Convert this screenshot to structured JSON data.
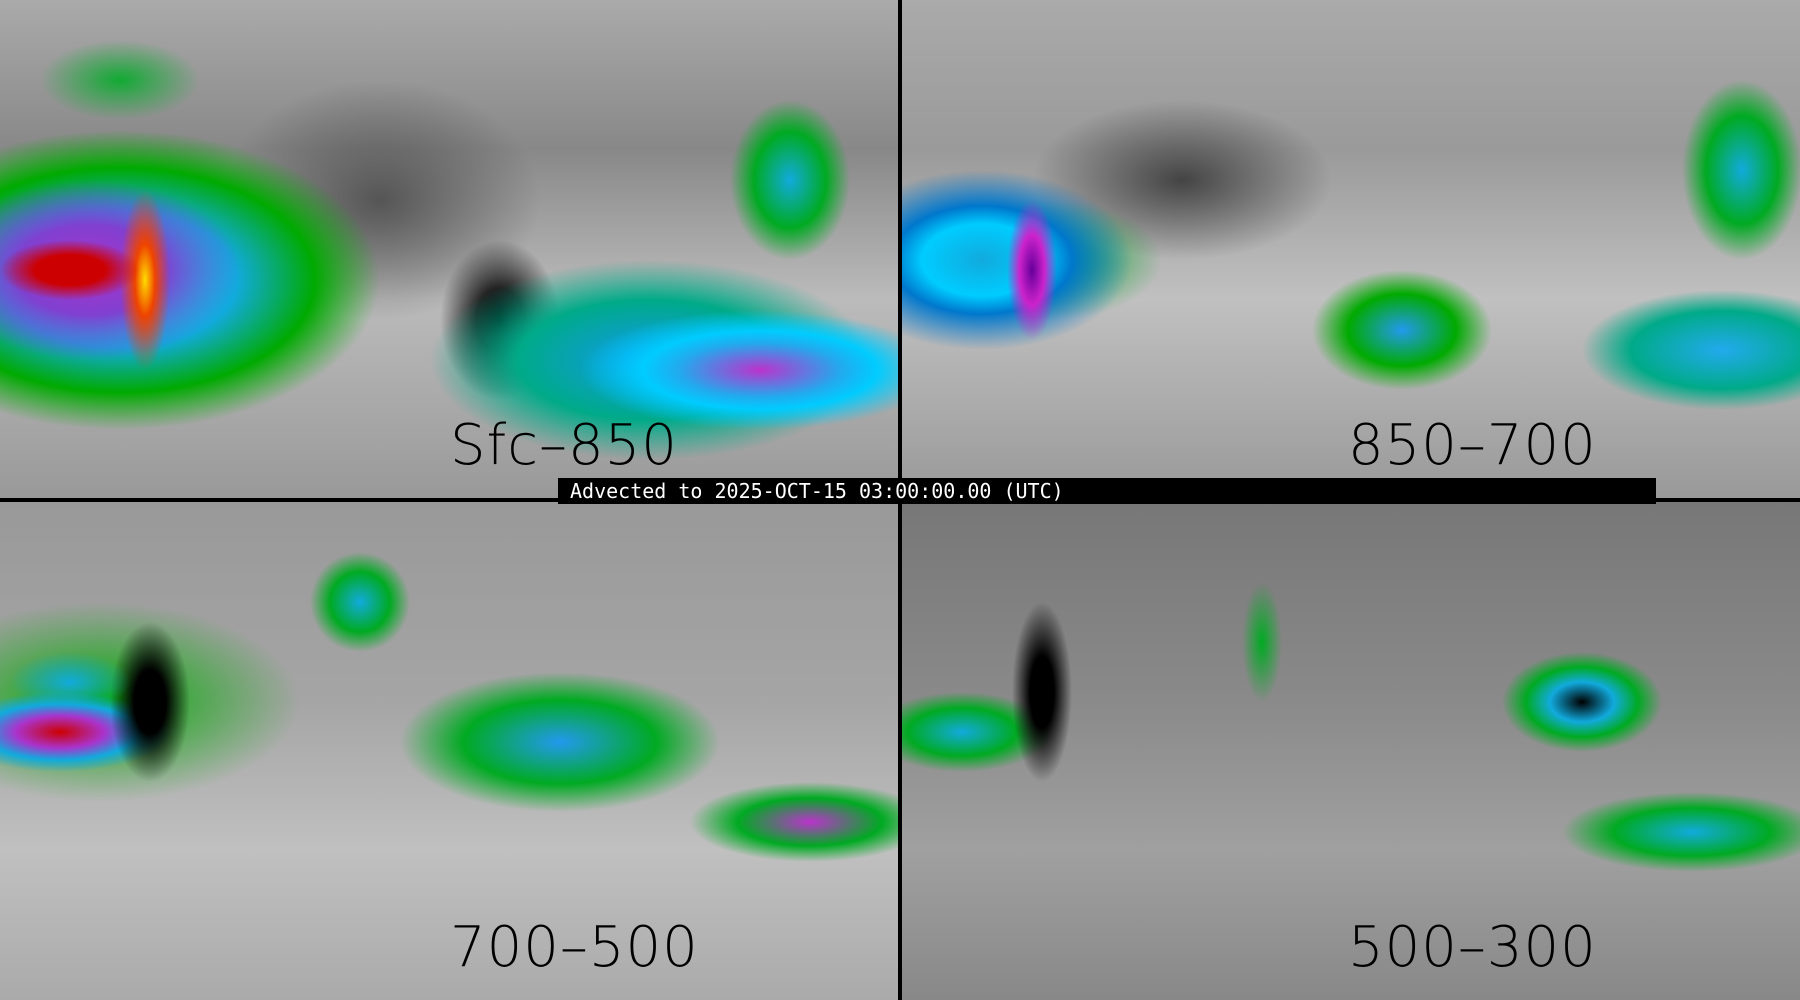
{
  "panels": [
    {
      "label": "Sfc–850"
    },
    {
      "label": "850–700"
    },
    {
      "label": "700–500"
    },
    {
      "label": "500–300"
    }
  ],
  "banner": {
    "text": "Advected to 2025-OCT-15 03:00:00.00 (UTC)"
  },
  "colors": {
    "low": "#808080",
    "green": "#00a020",
    "blue": "#1aa0e0",
    "cyan": "#00ffff",
    "purple": "#a030c0",
    "red": "#c00000",
    "yellow": "#ffd000",
    "outline": "#000000"
  }
}
